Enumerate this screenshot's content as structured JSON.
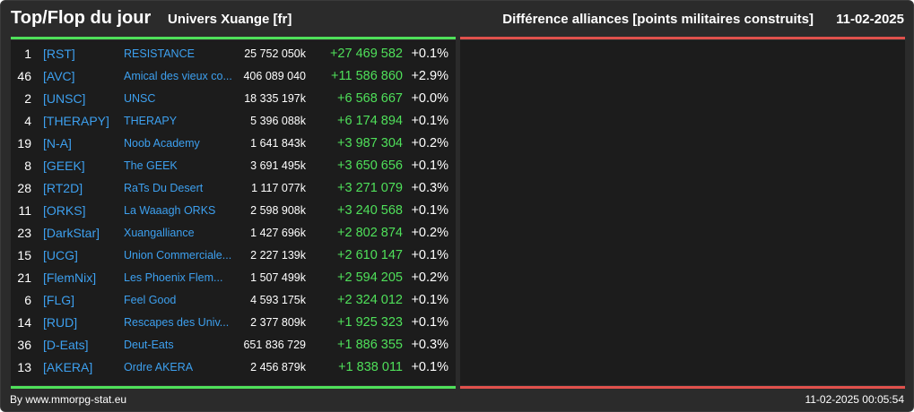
{
  "header": {
    "title": "Top/Flop du jour",
    "universe": "Univers Xuange [fr]",
    "metric": "Différence alliances [points militaires construits]",
    "date": "11-02-2025"
  },
  "colors": {
    "background": "#2b2b2b",
    "panel": "#1c1c1c",
    "top_accent": "#4fe05a",
    "flop_accent": "#e0514c",
    "link": "#3da0ef",
    "gain": "#4fe05a"
  },
  "top_rows": [
    {
      "rank": "1",
      "tag": "[RST]",
      "name": "RESISTANCE",
      "points": "25 752 050k",
      "diff": "+27 469 582",
      "pct": "+0.1%"
    },
    {
      "rank": "46",
      "tag": "[AVC]",
      "name": "Amical des vieux co...",
      "points": "406 089 040",
      "diff": "+11 586 860",
      "pct": "+2.9%"
    },
    {
      "rank": "2",
      "tag": "[UNSC]",
      "name": "UNSC",
      "points": "18 335 197k",
      "diff": "+6 568 667",
      "pct": "+0.0%"
    },
    {
      "rank": "4",
      "tag": "[THERAPY]",
      "name": "THERAPY",
      "points": "5 396 088k",
      "diff": "+6 174 894",
      "pct": "+0.1%"
    },
    {
      "rank": "19",
      "tag": "[N-A]",
      "name": "Noob Academy",
      "points": "1 641 843k",
      "diff": "+3 987 304",
      "pct": "+0.2%"
    },
    {
      "rank": "8",
      "tag": "[GEEK]",
      "name": "The GEEK",
      "points": "3 691 495k",
      "diff": "+3 650 656",
      "pct": "+0.1%"
    },
    {
      "rank": "28",
      "tag": "[RT2D]",
      "name": "RaTs Du Desert",
      "points": "1 117 077k",
      "diff": "+3 271 079",
      "pct": "+0.3%"
    },
    {
      "rank": "11",
      "tag": "[ORKS]",
      "name": "La Waaagh ORKS",
      "points": "2 598 908k",
      "diff": "+3 240 568",
      "pct": "+0.1%"
    },
    {
      "rank": "23",
      "tag": "[DarkStar]",
      "name": "Xuangalliance",
      "points": "1 427 696k",
      "diff": "+2 802 874",
      "pct": "+0.2%"
    },
    {
      "rank": "15",
      "tag": "[UCG]",
      "name": "Union Commerciale...",
      "points": "2 227 139k",
      "diff": "+2 610 147",
      "pct": "+0.1%"
    },
    {
      "rank": "21",
      "tag": "[FlemNix]",
      "name": "Les Phoenix Flem...",
      "points": "1 507 499k",
      "diff": "+2 594 205",
      "pct": "+0.2%"
    },
    {
      "rank": "6",
      "tag": "[FLG]",
      "name": "Feel Good",
      "points": "4 593 175k",
      "diff": "+2 324 012",
      "pct": "+0.1%"
    },
    {
      "rank": "14",
      "tag": "[RUD]",
      "name": "Rescapes des Univ...",
      "points": "2 377 809k",
      "diff": "+1 925 323",
      "pct": "+0.1%"
    },
    {
      "rank": "36",
      "tag": "[D-Eats]",
      "name": "Deut-Eats",
      "points": "651 836 729",
      "diff": "+1 886 355",
      "pct": "+0.3%"
    },
    {
      "rank": "13",
      "tag": "[AKERA]",
      "name": "Ordre AKERA",
      "points": "2 456 879k",
      "diff": "+1 838 011",
      "pct": "+0.1%"
    }
  ],
  "footer": {
    "credit": "By www.mmorpg-stat.eu",
    "timestamp": "11-02-2025 00:05:54"
  }
}
